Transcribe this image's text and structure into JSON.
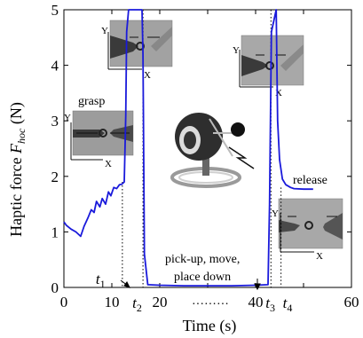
{
  "chart_data": {
    "type": "line",
    "xlabel": "Time (s)",
    "ylabel_prefix": "Haptic force ",
    "ylabel_symbol": "F",
    "ylabel_sub": "hoc",
    "ylabel_suffix": " (N)",
    "xlim": [
      0,
      60
    ],
    "ylim": [
      0,
      5
    ],
    "xticks": [
      0,
      10,
      20,
      40,
      60
    ],
    "yticks": [
      0,
      1,
      2,
      3,
      4,
      5
    ],
    "minor_xticks": [
      30,
      50
    ],
    "line_color": "#1a1adb",
    "series": [
      {
        "x": [
          0,
          0.5,
          1.5,
          2.5,
          3.5,
          4.2,
          5,
          5.7,
          6.3,
          6.8,
          7.5,
          8,
          8.7,
          9.3,
          9.8,
          10.4,
          11,
          11.6,
          12.1,
          12.6,
          12.9,
          13.1,
          13.5,
          16.3,
          16.5,
          16.8,
          17.5,
          20,
          25,
          30,
          35,
          40,
          42.6,
          42.9,
          43.3,
          44.3,
          44.6,
          45,
          45.6,
          46.3,
          47.3,
          48,
          50,
          52
        ],
        "y": [
          1.18,
          1.12,
          1.05,
          1.0,
          0.92,
          1.1,
          1.25,
          1.4,
          1.35,
          1.55,
          1.45,
          1.6,
          1.5,
          1.72,
          1.65,
          1.8,
          1.78,
          1.85,
          1.86,
          1.9,
          3.1,
          4.6,
          5.0,
          5.0,
          4.2,
          0.6,
          0.05,
          0.04,
          0.03,
          0.03,
          0.03,
          0.04,
          0.05,
          1.5,
          4.6,
          5.0,
          3.0,
          2.3,
          1.95,
          1.85,
          1.8,
          1.78,
          1.77,
          1.77
        ]
      }
    ],
    "vlines": [
      {
        "x": 12.2,
        "label": "t",
        "sub": "1"
      },
      {
        "x": 16.5,
        "label": "t",
        "sub": "2"
      },
      {
        "x": 43.2,
        "label": "t",
        "sub": "3"
      },
      {
        "x": 45.3,
        "label": "t",
        "sub": "4"
      }
    ],
    "annotations": {
      "grasp": "grasp",
      "release": "release",
      "phase_line1": "pick-up, move,",
      "phase_line2": "place down",
      "dots": "·········"
    },
    "insets": [
      {
        "id": "inset-grasp",
        "axis_y": "Y",
        "axis_x": "X"
      },
      {
        "id": "inset-lift",
        "axis_y": "Y",
        "axis_x": "X"
      },
      {
        "id": "inset-place",
        "axis_y": "Y",
        "axis_x": "X"
      },
      {
        "id": "inset-release",
        "axis_y": "Y",
        "axis_x": "X"
      }
    ]
  }
}
